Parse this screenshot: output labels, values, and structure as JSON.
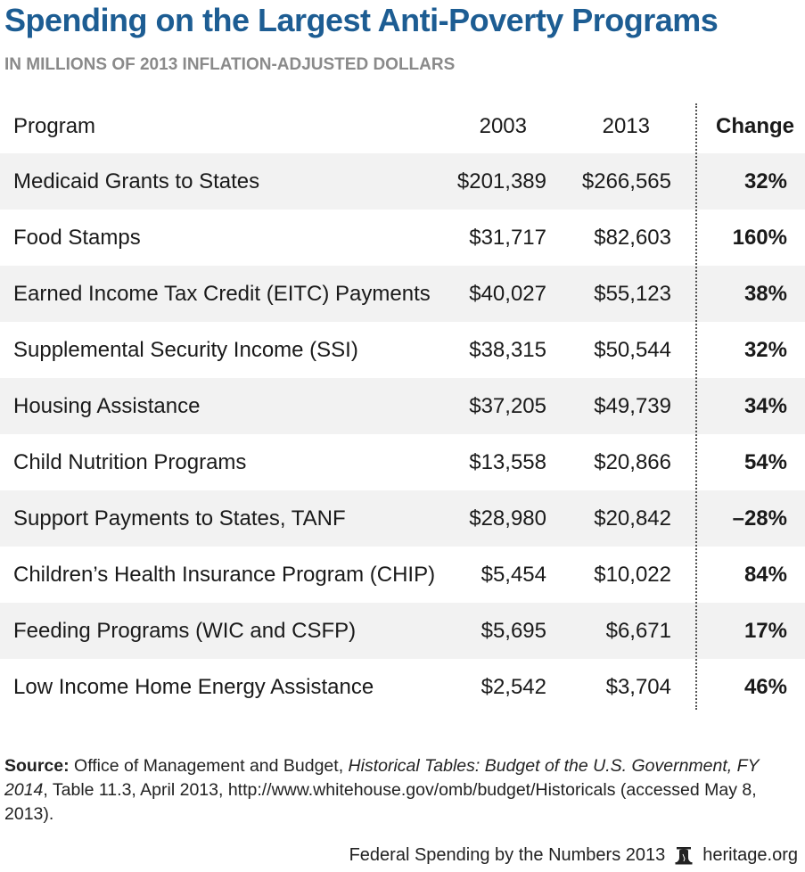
{
  "title": "Spending on the Largest Anti-Poverty Programs",
  "subtitle": "IN MILLIONS OF 2013 INFLATION-ADJUSTED DOLLARS",
  "table": {
    "headers": [
      "Program",
      "2003",
      "2013",
      "Change"
    ],
    "rows": [
      {
        "program": "Medicaid Grants to States",
        "y2003": "$201,389",
        "y2013": "$266,565",
        "change": "32%"
      },
      {
        "program": "Food Stamps",
        "y2003": "$31,717",
        "y2013": "$82,603",
        "change": "160%"
      },
      {
        "program": "Earned Income Tax Credit (EITC) Payments",
        "y2003": "$40,027",
        "y2013": "$55,123",
        "change": "38%"
      },
      {
        "program": "Supplemental Security Income (SSI)",
        "y2003": "$38,315",
        "y2013": "$50,544",
        "change": "32%"
      },
      {
        "program": "Housing Assistance",
        "y2003": "$37,205",
        "y2013": "$49,739",
        "change": "34%"
      },
      {
        "program": "Child Nutrition Programs",
        "y2003": "$13,558",
        "y2013": "$20,866",
        "change": "54%"
      },
      {
        "program": "Support Payments to States, TANF",
        "y2003": "$28,980",
        "y2013": "$20,842",
        "change": "–28%"
      },
      {
        "program": "Children’s Health Insurance Program (CHIP)",
        "y2003": "$5,454",
        "y2013": "$10,022",
        "change": "84%"
      },
      {
        "program": "Feeding Programs (WIC and CSFP)",
        "y2003": "$5,695",
        "y2013": "$6,671",
        "change": "17%"
      },
      {
        "program": "Low Income Home Energy Assistance",
        "y2003": "$2,542",
        "y2013": "$3,704",
        "change": "46%"
      }
    ]
  },
  "source": {
    "label": "Source:",
    "text_1": " Office of Management and Budget, ",
    "italic_1": "Historical Tables: Budget of the U.S. Government, FY 2014",
    "text_2": ", Table 11.3, April 2013, http://www.whitehouse.gov/omb/budget/Historicals (accessed May 8, 2013)."
  },
  "footer": {
    "publication": "Federal Spending by the Numbers 2013",
    "site": "heritage.org",
    "logo_icon": "liberty-bell-icon"
  },
  "chart_data": {
    "type": "table",
    "title": "Spending on the Largest Anti-Poverty Programs",
    "subtitle": "IN MILLIONS OF 2013 INFLATION-ADJUSTED DOLLARS",
    "columns": [
      "Program",
      "2003",
      "2013",
      "Change"
    ],
    "categories": [
      "Medicaid Grants to States",
      "Food Stamps",
      "Earned Income Tax Credit (EITC) Payments",
      "Supplemental Security Income (SSI)",
      "Housing Assistance",
      "Child Nutrition Programs",
      "Support Payments to States, TANF",
      "Children’s Health Insurance Program (CHIP)",
      "Feeding Programs (WIC and CSFP)",
      "Low Income Home Energy Assistance"
    ],
    "series": [
      {
        "name": "2003",
        "values": [
          201389,
          31717,
          40027,
          38315,
          37205,
          13558,
          28980,
          5454,
          5695,
          2542
        ]
      },
      {
        "name": "2013",
        "values": [
          266565,
          82603,
          55123,
          50544,
          49739,
          20866,
          20842,
          10022,
          6671,
          3704
        ]
      },
      {
        "name": "Change",
        "values": [
          32,
          160,
          38,
          32,
          34,
          54,
          -28,
          84,
          17,
          46
        ]
      }
    ]
  }
}
